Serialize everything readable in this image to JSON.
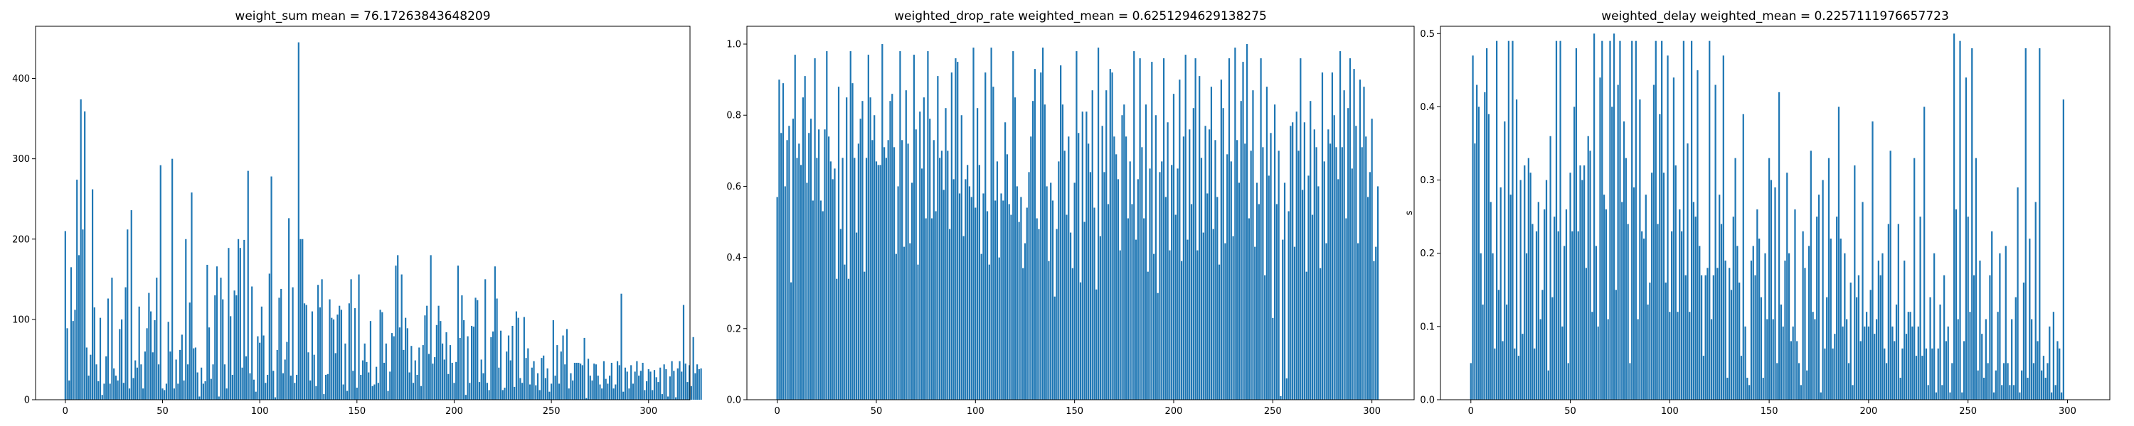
{
  "chart_data": [
    {
      "type": "bar",
      "title": "weight_sum mean = 76.17263843648209",
      "xlabel": "",
      "ylabel": "",
      "xlim": [
        -15.3,
        321.3
      ],
      "ylim": [
        0,
        465
      ],
      "xticks": [
        0,
        50,
        100,
        150,
        200,
        250,
        300
      ],
      "yticks": [
        0,
        100,
        200,
        300,
        400
      ],
      "grid": false,
      "bar_color": "#1f77b4",
      "x_start": 0,
      "values": [
        210,
        89,
        24,
        165,
        98,
        112,
        274,
        180,
        374,
        212,
        359,
        65,
        30,
        56,
        262,
        115,
        44,
        23,
        102,
        6,
        20,
        54,
        126,
        20,
        152,
        39,
        30,
        24,
        88,
        100,
        21,
        140,
        212,
        14,
        236,
        27,
        49,
        40,
        116,
        44,
        14,
        60,
        89,
        133,
        110,
        59,
        99,
        152,
        44,
        292,
        14,
        12,
        20,
        97,
        60,
        300,
        14,
        50,
        20,
        62,
        81,
        24,
        200,
        44,
        121,
        258,
        64,
        65,
        34,
        4,
        40,
        20,
        23,
        168,
        90,
        26,
        44,
        130,
        166,
        4,
        152,
        125,
        44,
        14,
        189,
        104,
        31,
        136,
        130,
        200,
        189,
        40,
        199,
        54,
        285,
        33,
        141,
        25,
        10,
        79,
        71,
        116,
        80,
        21,
        31,
        157,
        278,
        36,
        3,
        62,
        127,
        138,
        33,
        50,
        72,
        226,
        30,
        140,
        21,
        31,
        445,
        200,
        200,
        120,
        118,
        59,
        24,
        110,
        56,
        17,
        143,
        115,
        150,
        7,
        31,
        32,
        125,
        102,
        100,
        58,
        106,
        117,
        112,
        19,
        70,
        11,
        120,
        150,
        36,
        114,
        15,
        156,
        31,
        49,
        70,
        47,
        34,
        98,
        17,
        19,
        41,
        21,
        112,
        109,
        46,
        70,
        11,
        35,
        83,
        79,
        167,
        180,
        90,
        156,
        62,
        102,
        89,
        34,
        67,
        21,
        49,
        31,
        65,
        17,
        68,
        105,
        117,
        57,
        180,
        45,
        53,
        93,
        117,
        98,
        70,
        50,
        84,
        32,
        68,
        46,
        21,
        47,
        167,
        77,
        130,
        99,
        6,
        79,
        21,
        92,
        91,
        127,
        124,
        22,
        50,
        33,
        150,
        21,
        12,
        78,
        85,
        166,
        126,
        40,
        86,
        12,
        15,
        60,
        80,
        49,
        92,
        16,
        110,
        102,
        27,
        21,
        103,
        52,
        64,
        19,
        40,
        48,
        18,
        33,
        12,
        52,
        55,
        27,
        39,
        10,
        20,
        99,
        30,
        68,
        20,
        60,
        80,
        44,
        88,
        14,
        33,
        24,
        46,
        46,
        46,
        45,
        43,
        77,
        2,
        51,
        30,
        24,
        45,
        44,
        30,
        19,
        14,
        48,
        26,
        20,
        30,
        46,
        14,
        19,
        48,
        43,
        132,
        10,
        40,
        35,
        14,
        43,
        20,
        35,
        48,
        30,
        36,
        46,
        12,
        23,
        38,
        35,
        12,
        37,
        28,
        22,
        40,
        7,
        44,
        38,
        4,
        29,
        48,
        36,
        3,
        39,
        48,
        35,
        118,
        45,
        22,
        43,
        17,
        78,
        33,
        44,
        38,
        39
      ]
    },
    {
      "type": "bar",
      "title": "weighted_drop_rate weighted_mean = 0.6251294629138275",
      "xlabel": "",
      "ylabel": "",
      "xlim": [
        -15.3,
        321.3
      ],
      "ylim": [
        0,
        1.05
      ],
      "xticks": [
        0,
        50,
        100,
        150,
        200,
        250,
        300
      ],
      "yticks": [
        0.0,
        0.2,
        0.4,
        0.6,
        0.8,
        1.0
      ],
      "ytick_labels": [
        "0.0",
        "0.2",
        "0.4",
        "0.6",
        "0.8",
        "1.0"
      ],
      "grid": false,
      "bar_color": "#1f77b4",
      "x_start": 0,
      "values": [
        0.57,
        0.9,
        0.75,
        0.89,
        0.6,
        0.73,
        0.77,
        0.33,
        0.79,
        0.97,
        0.68,
        0.72,
        0.66,
        0.85,
        0.91,
        0.61,
        0.75,
        0.79,
        0.56,
        0.96,
        0.68,
        0.76,
        0.56,
        0.53,
        0.76,
        0.98,
        0.74,
        0.67,
        0.62,
        0.65,
        0.34,
        0.88,
        0.48,
        0.68,
        0.38,
        0.85,
        0.34,
        0.98,
        0.89,
        0.68,
        0.47,
        0.72,
        0.79,
        0.84,
        0.36,
        0.68,
        0.97,
        0.85,
        0.73,
        0.8,
        0.67,
        0.66,
        0.66,
        1.0,
        0.71,
        0.68,
        0.73,
        0.84,
        0.86,
        0.71,
        0.41,
        0.6,
        0.98,
        0.73,
        0.43,
        0.87,
        0.72,
        0.44,
        0.61,
        0.97,
        0.76,
        0.38,
        0.81,
        0.65,
        0.85,
        0.51,
        0.98,
        0.79,
        0.51,
        0.73,
        0.53,
        0.91,
        0.68,
        0.7,
        0.59,
        0.82,
        0.7,
        0.48,
        0.92,
        0.62,
        0.96,
        0.95,
        0.58,
        0.8,
        0.46,
        0.62,
        0.66,
        0.6,
        0.57,
        0.99,
        0.54,
        0.82,
        0.66,
        0.41,
        0.58,
        0.92,
        0.53,
        0.38,
        0.99,
        0.88,
        0.56,
        0.67,
        0.4,
        0.58,
        0.56,
        0.78,
        0.69,
        0.55,
        0.52,
        0.98,
        0.85,
        0.6,
        0.5,
        0.57,
        0.37,
        0.44,
        0.54,
        0.64,
        0.74,
        0.84,
        0.93,
        0.51,
        0.48,
        0.92,
        0.99,
        0.83,
        0.6,
        0.39,
        0.61,
        0.56,
        0.29,
        0.48,
        0.67,
        0.94,
        0.83,
        0.7,
        0.52,
        0.74,
        0.47,
        0.37,
        0.61,
        0.98,
        0.75,
        0.33,
        0.81,
        0.5,
        0.81,
        0.72,
        0.64,
        0.87,
        0.54,
        0.31,
        0.99,
        0.46,
        0.77,
        0.64,
        0.87,
        0.55,
        0.93,
        0.92,
        0.74,
        0.69,
        0.62,
        0.42,
        0.8,
        0.83,
        0.74,
        0.51,
        0.67,
        0.55,
        0.98,
        0.45,
        0.62,
        0.96,
        0.71,
        0.51,
        0.83,
        0.36,
        0.65,
        0.95,
        0.41,
        0.8,
        0.3,
        0.64,
        0.67,
        0.96,
        0.57,
        0.78,
        0.42,
        0.66,
        0.86,
        0.52,
        0.65,
        0.9,
        0.39,
        0.74,
        0.97,
        0.45,
        0.76,
        0.55,
        0.82,
        0.96,
        0.42,
        0.91,
        0.68,
        0.47,
        0.77,
        0.58,
        0.76,
        0.88,
        0.48,
        0.73,
        0.57,
        0.38,
        0.9,
        0.82,
        0.44,
        0.69,
        0.96,
        0.67,
        0.46,
        0.99,
        0.73,
        0.61,
        0.84,
        0.95,
        0.72,
        1.0,
        0.51,
        0.7,
        0.87,
        0.43,
        0.61,
        0.55,
        0.96,
        0.71,
        0.35,
        0.88,
        0.63,
        0.75,
        0.23,
        0.83,
        0.55,
        0.7,
        0.01,
        0.45,
        0.61,
        0.06,
        0.53,
        0.77,
        0.78,
        0.43,
        0.81,
        0.7,
        0.96,
        0.59,
        0.78,
        0.36,
        0.63,
        0.84,
        0.52,
        0.76,
        0.71,
        0.6,
        0.37,
        0.92,
        0.67,
        0.44,
        0.76,
        0.72,
        0.92,
        0.8,
        0.71,
        0.62,
        0.98,
        0.71,
        0.87,
        0.51,
        0.82,
        0.96,
        0.65,
        0.93,
        0.77,
        0.44,
        0.9,
        0.71,
        0.88,
        0.74,
        0.57,
        0.64,
        0.79,
        0.39,
        0.43,
        0.6
      ]
    },
    {
      "type": "bar",
      "title": "weighted_delay weighted_mean = 0.2257111976657723",
      "xlabel": "",
      "ylabel": "s",
      "xlim": [
        -15.3,
        321.3
      ],
      "ylim": [
        0,
        0.51
      ],
      "xticks": [
        0,
        50,
        100,
        150,
        200,
        250,
        300
      ],
      "yticks": [
        0.0,
        0.1,
        0.2,
        0.3,
        0.4,
        0.5
      ],
      "ytick_labels": [
        "0.0",
        "0.1",
        "0.2",
        "0.3",
        "0.4",
        "0.5"
      ],
      "grid": false,
      "bar_color": "#1f77b4",
      "x_start": 0,
      "values": [
        0.05,
        0.47,
        0.35,
        0.43,
        0.4,
        0.2,
        0.13,
        0.42,
        0.48,
        0.39,
        0.27,
        0.2,
        0.07,
        0.49,
        0.15,
        0.29,
        0.08,
        0.38,
        0.13,
        0.49,
        0.28,
        0.49,
        0.07,
        0.41,
        0.06,
        0.3,
        0.09,
        0.32,
        0.2,
        0.33,
        0.31,
        0.24,
        0.07,
        0.23,
        0.27,
        0.11,
        0.15,
        0.26,
        0.3,
        0.04,
        0.36,
        0.14,
        0.25,
        0.49,
        0.23,
        0.49,
        0.1,
        0.21,
        0.26,
        0.05,
        0.31,
        0.23,
        0.4,
        0.48,
        0.23,
        0.32,
        0.3,
        0.32,
        0.18,
        0.36,
        0.34,
        0.12,
        0.5,
        0.21,
        0.1,
        0.44,
        0.49,
        0.28,
        0.26,
        0.11,
        0.49,
        0.4,
        0.5,
        0.15,
        0.43,
        0.49,
        0.27,
        0.38,
        0.33,
        0.24,
        0.05,
        0.49,
        0.29,
        0.49,
        0.11,
        0.41,
        0.23,
        0.22,
        0.28,
        0.13,
        0.16,
        0.31,
        0.43,
        0.49,
        0.24,
        0.39,
        0.49,
        0.31,
        0.16,
        0.47,
        0.12,
        0.23,
        0.44,
        0.32,
        0.12,
        0.26,
        0.23,
        0.49,
        0.17,
        0.35,
        0.12,
        0.49,
        0.27,
        0.25,
        0.45,
        0.21,
        0.17,
        0.06,
        0.17,
        0.18,
        0.49,
        0.11,
        0.17,
        0.43,
        0.18,
        0.28,
        0.24,
        0.47,
        0.19,
        0.03,
        0.18,
        0.15,
        0.25,
        0.33,
        0.21,
        0.16,
        0.06,
        0.39,
        0.1,
        0.03,
        0.02,
        0.19,
        0.21,
        0.17,
        0.26,
        0.22,
        0.14,
        0.03,
        0.2,
        0.11,
        0.33,
        0.3,
        0.11,
        0.29,
        0.05,
        0.42,
        0.13,
        0.1,
        0.19,
        0.31,
        0.2,
        0.08,
        0.1,
        0.26,
        0.08,
        0.05,
        0.02,
        0.23,
        0.18,
        0.04,
        0.21,
        0.34,
        0.12,
        0.11,
        0.25,
        0.28,
        0.01,
        0.3,
        0.07,
        0.14,
        0.33,
        0.22,
        0.07,
        0.09,
        0.25,
        0.4,
        0.22,
        0.1,
        0.2,
        0.11,
        0.05,
        0.16,
        0.02,
        0.32,
        0.14,
        0.17,
        0.08,
        0.27,
        0.1,
        0.12,
        0.1,
        0.15,
        0.38,
        0.09,
        0.11,
        0.19,
        0.17,
        0.2,
        0.07,
        0.05,
        0.24,
        0.34,
        0.1,
        0.08,
        0.13,
        0.24,
        0.03,
        0.07,
        0.19,
        0.09,
        0.12,
        0.12,
        0.1,
        0.33,
        0.06,
        0.1,
        0.25,
        0.06,
        0.4,
        0.07,
        0.02,
        0.14,
        0.07,
        0.2,
        0.01,
        0.07,
        0.13,
        0.02,
        0.17,
        0.08,
        0.1,
        0.01,
        0.05,
        0.5,
        0.26,
        0.11,
        0.49,
        0.01,
        0.08,
        0.44,
        0.25,
        0.12,
        0.48,
        0.17,
        0.33,
        0.04,
        0.19,
        0.09,
        0.03,
        0.11,
        0.05,
        0.17,
        0.23,
        0.01,
        0.04,
        0.12,
        0.2,
        0.02,
        0.05,
        0.21,
        0.05,
        0.02,
        0.11,
        0.02,
        0.14,
        0.29,
        0.01,
        0.04,
        0.16,
        0.48,
        0.03,
        0.22,
        0.11,
        0.05,
        0.27,
        0.08,
        0.48,
        0.04,
        0.06,
        0.03,
        0.05,
        0.1,
        0.01,
        0.12,
        0.02,
        0.08,
        0.07,
        0.01,
        0.41
      ]
    }
  ]
}
